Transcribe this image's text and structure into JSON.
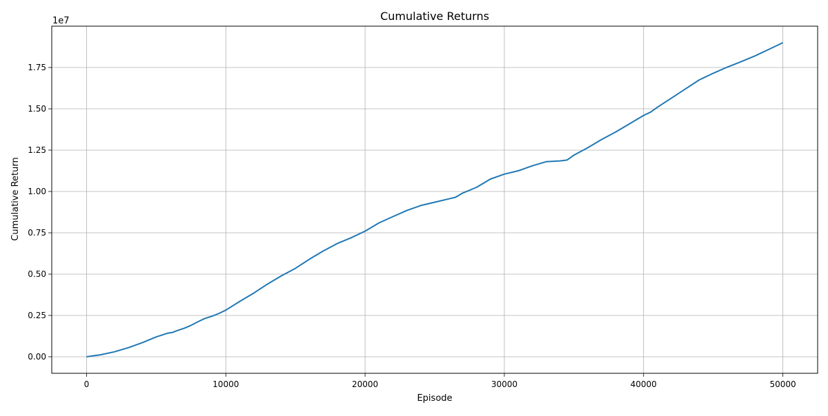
{
  "chart_data": {
    "type": "line",
    "title": "Cumulative Returns",
    "xlabel": "Episode",
    "ylabel": "Cumulative Return",
    "y_offset_text": "1e7",
    "xlim": [
      -2500,
      52500
    ],
    "ylim": [
      -0.1,
      2.0
    ],
    "y_scale_note": "values in units of 1e7",
    "grid": true,
    "x_ticks": [
      0,
      10000,
      20000,
      30000,
      40000,
      50000
    ],
    "x_tick_labels": [
      "0",
      "10000",
      "20000",
      "30000",
      "40000",
      "50000"
    ],
    "y_ticks": [
      0.0,
      0.25,
      0.5,
      0.75,
      1.0,
      1.25,
      1.5,
      1.75
    ],
    "y_tick_labels": [
      "0.00",
      "0.25",
      "0.50",
      "0.75",
      "1.00",
      "1.25",
      "1.50",
      "1.75"
    ],
    "series": [
      {
        "color": "#1f77b4",
        "x": [
          0,
          1000,
          2000,
          3000,
          4000,
          5000,
          5800,
          6200,
          6500,
          7000,
          7500,
          8000,
          8500,
          9000,
          9500,
          10000,
          11000,
          12000,
          13000,
          14000,
          15000,
          16000,
          17000,
          18000,
          19000,
          20000,
          21000,
          22000,
          23000,
          24000,
          25000,
          26000,
          26500,
          27000,
          28000,
          29000,
          30000,
          31000,
          32000,
          33000,
          34000,
          34500,
          35000,
          36000,
          37000,
          38000,
          39000,
          40000,
          40500,
          41000,
          42000,
          43000,
          44000,
          45000,
          46000,
          47000,
          48000,
          49000,
          50000
        ],
        "y": [
          0.0,
          0.012,
          0.03,
          0.055,
          0.085,
          0.12,
          0.142,
          0.148,
          0.158,
          0.172,
          0.19,
          0.212,
          0.232,
          0.245,
          0.262,
          0.282,
          0.335,
          0.385,
          0.44,
          0.49,
          0.535,
          0.59,
          0.64,
          0.685,
          0.72,
          0.76,
          0.81,
          0.848,
          0.885,
          0.915,
          0.935,
          0.955,
          0.965,
          0.99,
          1.025,
          1.075,
          1.105,
          1.125,
          1.155,
          1.18,
          1.185,
          1.19,
          1.22,
          1.265,
          1.315,
          1.36,
          1.41,
          1.46,
          1.48,
          1.51,
          1.565,
          1.62,
          1.675,
          1.715,
          1.752,
          1.785,
          1.82,
          1.86,
          1.9
        ]
      }
    ]
  }
}
